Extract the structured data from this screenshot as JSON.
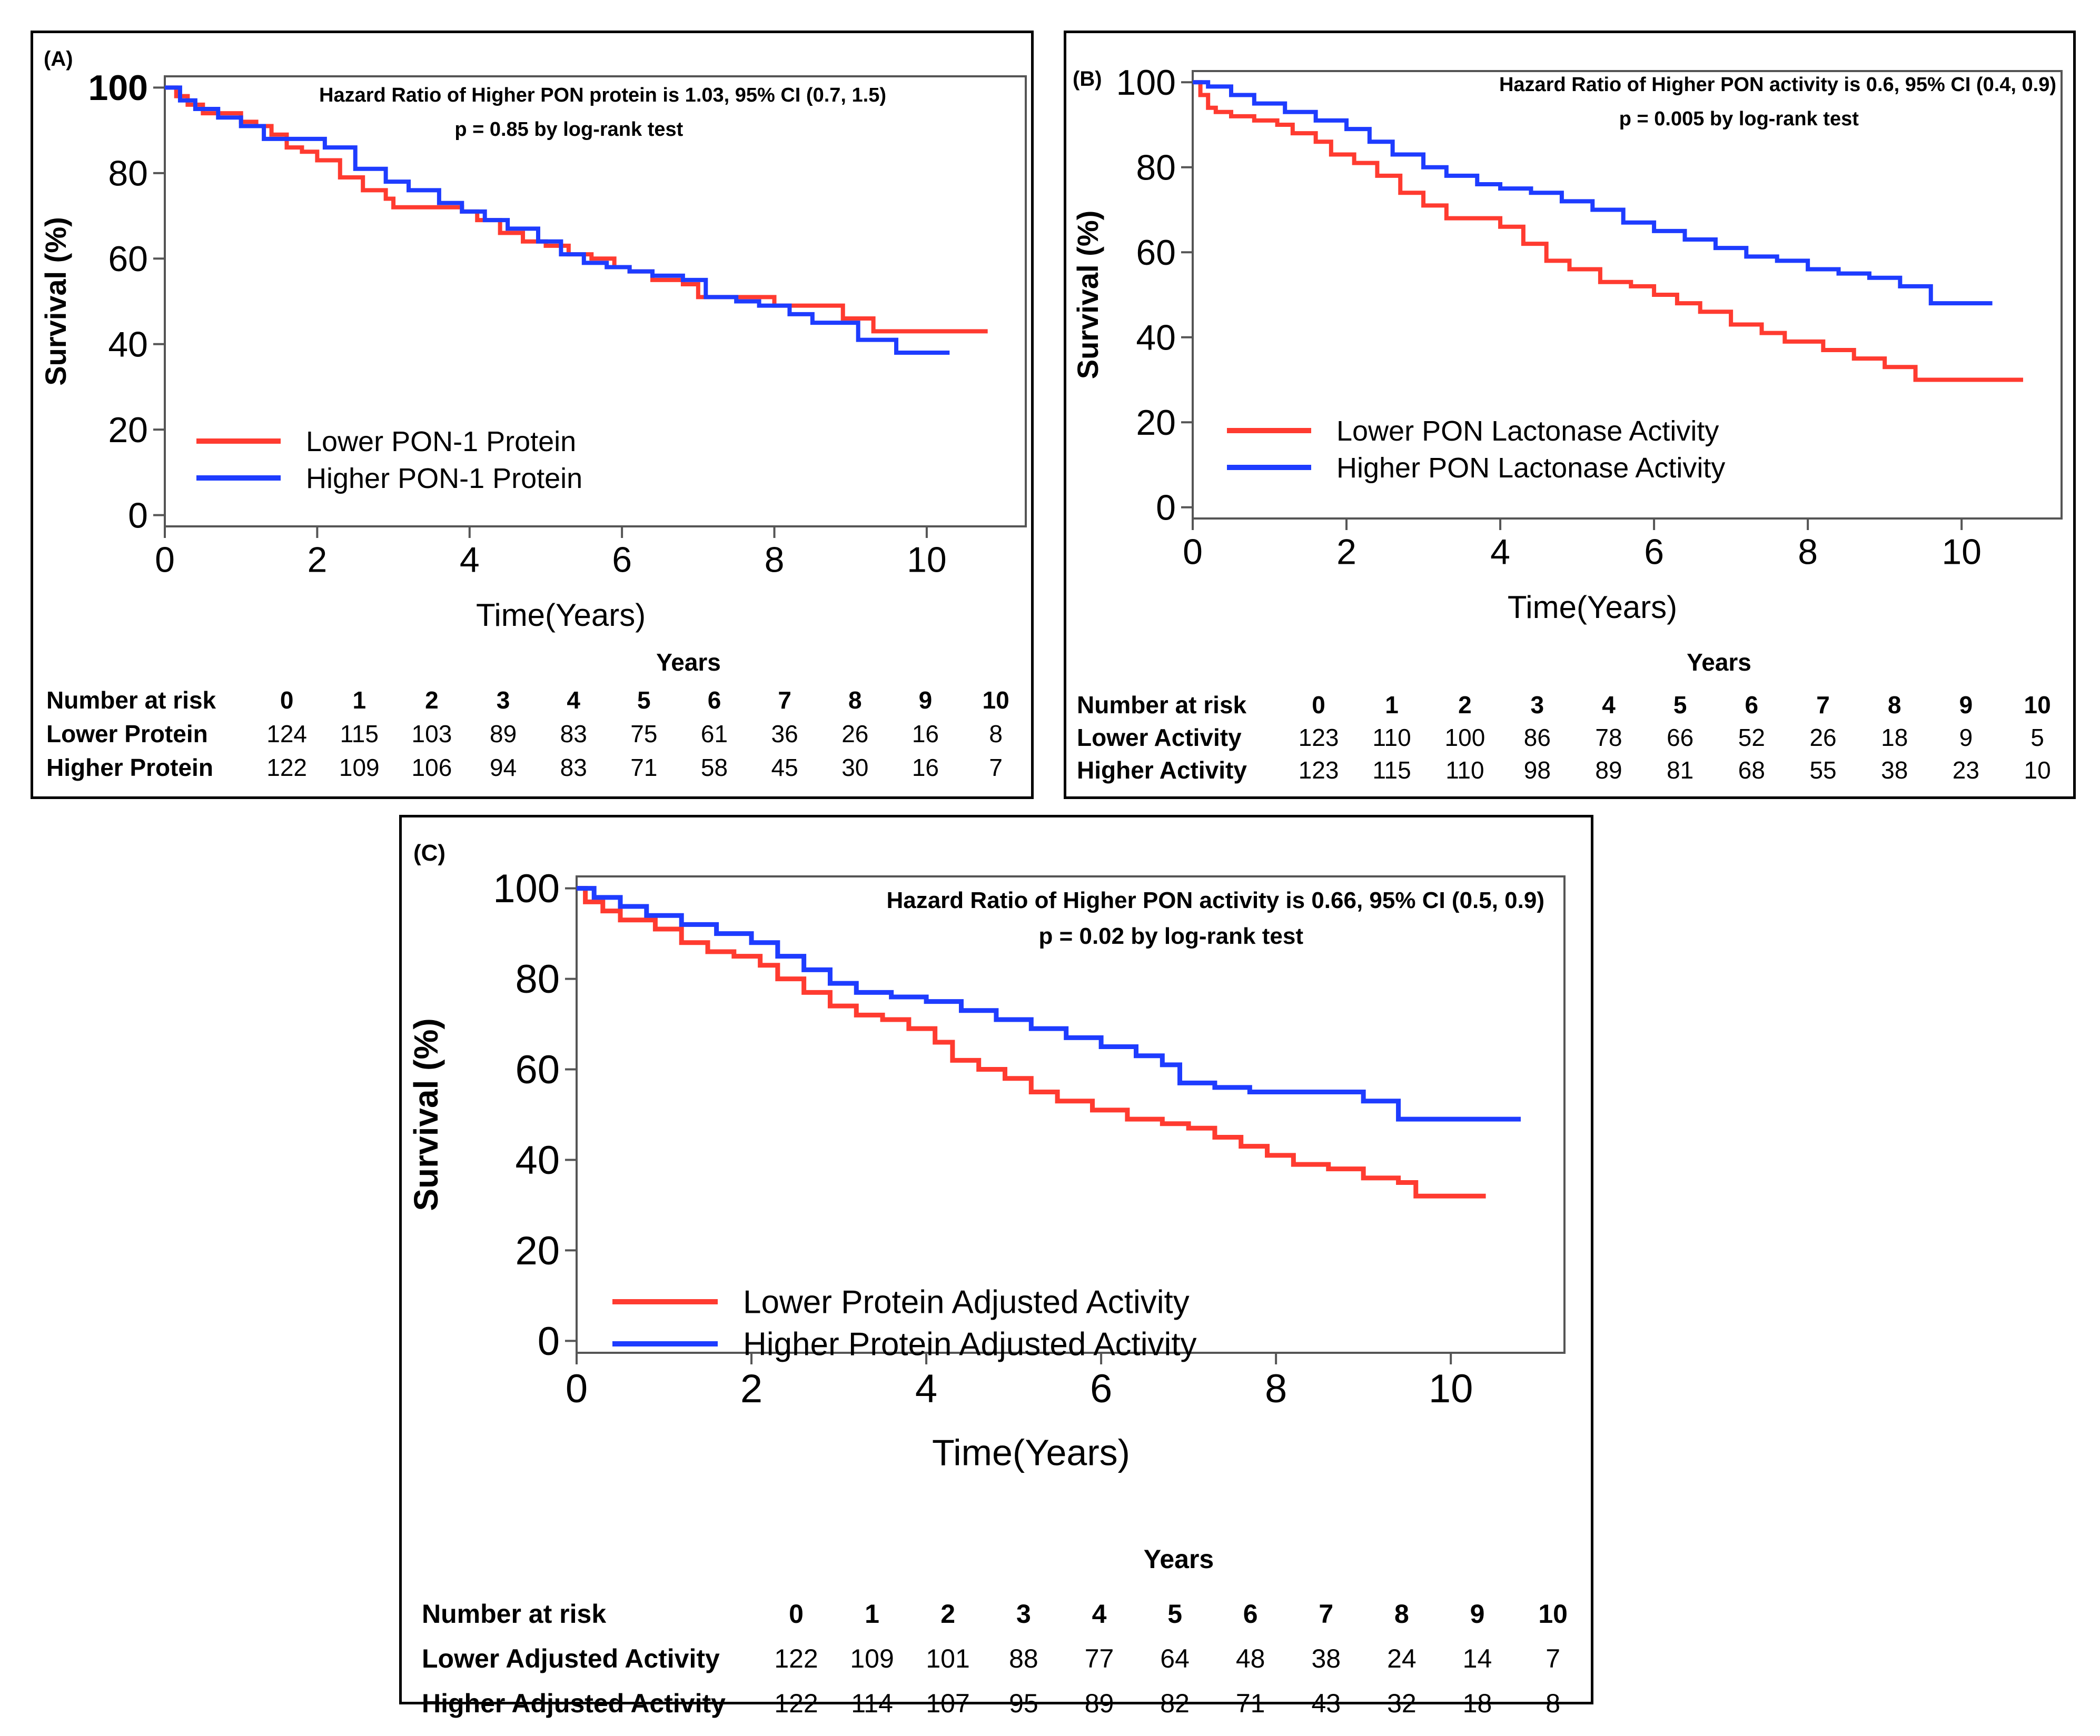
{
  "colors": {
    "lower": "#ff3b30",
    "higher": "#1e3cff",
    "axis": "#555555",
    "frame": "#000000"
  },
  "chart_data": [
    {
      "type": "line",
      "panel_label": "(A)",
      "title_line1": "Hazard Ratio of Higher PON protein is 1.03, 95% CI (0.7, 1.5)",
      "title_line2": "p = 0.85 by log-rank test",
      "xlabel": "Time(Years)",
      "ylabel": "Survival (%)",
      "xlim": [
        0,
        11.3
      ],
      "ylim": [
        0,
        100
      ],
      "xticks": [
        0,
        2,
        4,
        6,
        8,
        10
      ],
      "yticks": [
        0,
        20,
        40,
        60,
        80,
        100
      ],
      "ytick_labels": [
        "0",
        "20",
        "40",
        "60",
        "80",
        "100"
      ],
      "legend_location": "bottom-left",
      "series": [
        {
          "name": "Lower PON-1 Protein",
          "color_key": "lower",
          "x": [
            0,
            0.15,
            0.3,
            0.5,
            0.8,
            1.0,
            1.2,
            1.4,
            1.6,
            1.8,
            2.0,
            2.3,
            2.6,
            2.9,
            3.0,
            3.3,
            3.6,
            3.9,
            4.1,
            4.4,
            4.7,
            5.0,
            5.3,
            5.6,
            5.9,
            6.1,
            6.4,
            6.6,
            6.8,
            7.0,
            7.3,
            7.6,
            8.0,
            8.5,
            8.9,
            9.3,
            10.8
          ],
          "values": [
            100,
            98,
            96,
            94,
            94,
            92,
            91,
            89,
            86,
            85,
            83,
            79,
            76,
            74,
            72,
            72,
            72,
            71,
            69,
            66,
            64,
            63,
            61,
            60,
            58,
            57,
            55,
            55,
            54,
            51,
            51,
            51,
            49,
            49,
            46,
            43,
            43
          ]
        },
        {
          "name": "Higher PON-1 Protein",
          "color_key": "higher",
          "x": [
            0,
            0.2,
            0.4,
            0.7,
            1.0,
            1.3,
            1.5,
            2.1,
            2.5,
            2.9,
            3.2,
            3.6,
            3.9,
            4.2,
            4.5,
            4.9,
            5.2,
            5.5,
            5.8,
            6.1,
            6.4,
            6.8,
            7.1,
            7.5,
            7.8,
            8.2,
            8.5,
            8.7,
            9.1,
            9.6,
            10.3
          ],
          "values": [
            100,
            97,
            95,
            93,
            91,
            88,
            88,
            86,
            81,
            78,
            76,
            73,
            71,
            69,
            67,
            64,
            61,
            59,
            58,
            57,
            56,
            55,
            51,
            50,
            49,
            47,
            45,
            45,
            41,
            38,
            38
          ]
        }
      ],
      "risk_table": {
        "title": "Years",
        "header": "Number at risk",
        "years": [
          "0",
          "1",
          "2",
          "3",
          "4",
          "5",
          "6",
          "7",
          "8",
          "9",
          "10"
        ],
        "rows": [
          {
            "label": "Lower Protein",
            "counts": [
              "124",
              "115",
              "103",
              "89",
              "83",
              "75",
              "61",
              "36",
              "26",
              "16",
              "8"
            ]
          },
          {
            "label": "Higher Protein",
            "counts": [
              "122",
              "109",
              "106",
              "94",
              "83",
              "71",
              "58",
              "45",
              "30",
              "16",
              "7"
            ]
          }
        ]
      }
    },
    {
      "type": "line",
      "panel_label": "(B)",
      "title_line1": "Hazard Ratio of Higher PON activity is 0.6, 95% CI (0.4, 0.9)",
      "title_line2": "p = 0.005 by log-rank test",
      "xlabel": "Time(Years)",
      "ylabel": "Survival (%)",
      "xlim": [
        0,
        11.3
      ],
      "ylim": [
        0,
        100
      ],
      "xticks": [
        0,
        2,
        4,
        6,
        8,
        10
      ],
      "yticks": [
        0,
        20,
        40,
        60,
        80,
        100
      ],
      "ytick_labels": [
        "0",
        "20",
        "40",
        "60",
        "80",
        "100"
      ],
      "legend_location": "bottom-left",
      "series": [
        {
          "name": "Lower PON Lactonase Activity",
          "color_key": "lower",
          "x": [
            0,
            0.1,
            0.2,
            0.3,
            0.5,
            0.8,
            1.1,
            1.3,
            1.6,
            1.8,
            2.1,
            2.4,
            2.7,
            3.0,
            3.3,
            3.7,
            4.0,
            4.3,
            4.6,
            4.9,
            5.3,
            5.7,
            6.0,
            6.3,
            6.6,
            7.0,
            7.4,
            7.7,
            8.2,
            8.6,
            9.0,
            9.4,
            10.8
          ],
          "values": [
            100,
            97,
            94,
            93,
            92,
            91,
            90,
            88,
            86,
            83,
            81,
            78,
            74,
            71,
            68,
            68,
            66,
            62,
            58,
            56,
            53,
            52,
            50,
            48,
            46,
            43,
            41,
            39,
            37,
            35,
            33,
            30,
            30
          ]
        },
        {
          "name": "Higher PON Lactonase Activity",
          "color_key": "higher",
          "x": [
            0,
            0.2,
            0.5,
            0.8,
            1.2,
            1.6,
            2.0,
            2.3,
            2.6,
            3.0,
            3.3,
            3.7,
            4.0,
            4.4,
            4.8,
            5.2,
            5.6,
            6.0,
            6.4,
            6.8,
            7.2,
            7.6,
            8.0,
            8.4,
            8.8,
            9.2,
            9.6,
            10.4
          ],
          "values": [
            100,
            99,
            97,
            95,
            93,
            91,
            89,
            86,
            83,
            80,
            78,
            76,
            75,
            74,
            72,
            70,
            67,
            65,
            63,
            61,
            59,
            58,
            56,
            55,
            54,
            52,
            48,
            48
          ]
        }
      ],
      "risk_table": {
        "title": "Years",
        "header": "Number at risk",
        "years": [
          "0",
          "1",
          "2",
          "3",
          "4",
          "5",
          "6",
          "7",
          "8",
          "9",
          "10"
        ],
        "rows": [
          {
            "label": "Lower Activity",
            "counts": [
              "123",
              "110",
              "100",
              "86",
              "78",
              "66",
              "52",
              "26",
              "18",
              "9",
              "5"
            ]
          },
          {
            "label": "Higher Activity",
            "counts": [
              "123",
              "115",
              "110",
              "98",
              "89",
              "81",
              "68",
              "55",
              "38",
              "23",
              "10"
            ]
          }
        ]
      }
    },
    {
      "type": "line",
      "panel_label": "(C)",
      "title_line1": "Hazard Ratio of Higher PON activity is 0.66, 95% CI (0.5, 0.9)",
      "title_line2": "p = 0.02 by log-rank test",
      "xlabel": "Time(Years)",
      "ylabel": "Survival (%)",
      "xlim": [
        0,
        11.3
      ],
      "ylim": [
        0,
        100
      ],
      "xticks": [
        0,
        2,
        4,
        6,
        8,
        10
      ],
      "yticks": [
        0,
        20,
        40,
        60,
        80,
        100
      ],
      "ytick_labels": [
        "0",
        "20",
        "40",
        "60",
        "80",
        "100"
      ],
      "legend_location": "bottom-left",
      "series": [
        {
          "name": "Lower Protein Adjusted Activity",
          "color_key": "lower",
          "x": [
            0,
            0.1,
            0.3,
            0.5,
            0.9,
            1.2,
            1.5,
            1.8,
            2.1,
            2.3,
            2.6,
            2.9,
            3.2,
            3.5,
            3.8,
            4.1,
            4.3,
            4.6,
            4.9,
            5.2,
            5.5,
            5.9,
            6.3,
            6.7,
            7.0,
            7.3,
            7.6,
            7.9,
            8.2,
            8.6,
            9.0,
            9.4,
            9.6,
            10.4
          ],
          "values": [
            100,
            97,
            95,
            93,
            91,
            88,
            86,
            85,
            83,
            80,
            77,
            74,
            72,
            71,
            69,
            66,
            62,
            60,
            58,
            55,
            53,
            51,
            49,
            48,
            47,
            45,
            43,
            41,
            39,
            38,
            36,
            35,
            32,
            32
          ]
        },
        {
          "name": "Higher Protein Adjusted Activity",
          "color_key": "higher",
          "x": [
            0,
            0.2,
            0.5,
            0.8,
            1.2,
            1.6,
            2.0,
            2.3,
            2.6,
            2.9,
            3.2,
            3.6,
            4.0,
            4.4,
            4.8,
            5.2,
            5.6,
            6.0,
            6.4,
            6.7,
            6.9,
            7.3,
            7.7,
            8.2,
            8.6,
            9.0,
            9.4,
            10.8
          ],
          "values": [
            100,
            98,
            96,
            94,
            92,
            90,
            88,
            85,
            82,
            79,
            77,
            76,
            75,
            73,
            71,
            69,
            67,
            65,
            63,
            61,
            57,
            56,
            55,
            55,
            55,
            53,
            49,
            49
          ]
        }
      ],
      "risk_table": {
        "title": "Years",
        "header": "Number at risk",
        "years": [
          "0",
          "1",
          "2",
          "3",
          "4",
          "5",
          "6",
          "7",
          "8",
          "9",
          "10"
        ],
        "rows": [
          {
            "label": "Lower Adjusted Activity",
            "counts": [
              "122",
              "109",
              "101",
              "88",
              "77",
              "64",
              "48",
              "38",
              "24",
              "14",
              "7"
            ]
          },
          {
            "label": "Higher Adjusted Activity",
            "counts": [
              "122",
              "114",
              "107",
              "95",
              "89",
              "82",
              "71",
              "43",
              "32",
              "18",
              "8"
            ]
          }
        ]
      }
    }
  ]
}
